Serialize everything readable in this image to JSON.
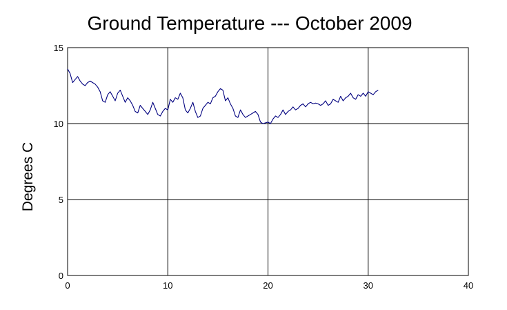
{
  "chart_data": {
    "type": "line",
    "title": "Ground Temperature --- October 2009",
    "xlabel": "",
    "ylabel": "Degrees C",
    "xlim": [
      0,
      40
    ],
    "ylim": [
      0,
      15
    ],
    "xticks": [
      0,
      10,
      20,
      30,
      40
    ],
    "yticks": [
      0,
      5,
      10,
      15
    ],
    "grid": true,
    "legend": "none",
    "series": [
      {
        "name": "",
        "color": "#00007f",
        "x": [
          0.0,
          0.25,
          0.5,
          0.75,
          1.0,
          1.25,
          1.5,
          1.75,
          2.0,
          2.25,
          2.5,
          2.75,
          3.0,
          3.25,
          3.5,
          3.75,
          4.0,
          4.25,
          4.5,
          4.75,
          5.0,
          5.25,
          5.5,
          5.75,
          6.0,
          6.25,
          6.5,
          6.75,
          7.0,
          7.25,
          7.5,
          7.75,
          8.0,
          8.25,
          8.5,
          8.75,
          9.0,
          9.25,
          9.5,
          9.75,
          10.0,
          10.25,
          10.5,
          10.75,
          11.0,
          11.25,
          11.5,
          11.75,
          12.0,
          12.25,
          12.5,
          12.75,
          13.0,
          13.25,
          13.5,
          13.75,
          14.0,
          14.25,
          14.5,
          14.75,
          15.0,
          15.25,
          15.5,
          15.75,
          16.0,
          16.25,
          16.5,
          16.75,
          17.0,
          17.25,
          17.5,
          17.75,
          18.0,
          18.25,
          18.5,
          18.75,
          19.0,
          19.25,
          19.5,
          19.75,
          20.0,
          20.25,
          20.5,
          20.75,
          21.0,
          21.25,
          21.5,
          21.75,
          22.0,
          22.25,
          22.5,
          22.75,
          23.0,
          23.25,
          23.5,
          23.75,
          24.0,
          24.25,
          24.5,
          24.75,
          25.0,
          25.25,
          25.5,
          25.75,
          26.0,
          26.25,
          26.5,
          26.75,
          27.0,
          27.25,
          27.5,
          27.75,
          28.0,
          28.25,
          28.5,
          28.75,
          29.0,
          29.25,
          29.5,
          29.75,
          30.0,
          30.25,
          30.5,
          30.75,
          31.0
        ],
        "y": [
          13.6,
          13.3,
          12.7,
          12.9,
          13.1,
          12.8,
          12.6,
          12.5,
          12.7,
          12.8,
          12.7,
          12.6,
          12.4,
          12.1,
          11.5,
          11.4,
          11.9,
          12.1,
          11.8,
          11.5,
          12.0,
          12.2,
          11.8,
          11.4,
          11.7,
          11.5,
          11.2,
          10.8,
          10.7,
          11.2,
          11.0,
          10.8,
          10.6,
          10.9,
          11.4,
          11.0,
          10.6,
          10.5,
          10.8,
          11.0,
          10.9,
          11.6,
          11.4,
          11.7,
          11.6,
          12.0,
          11.7,
          10.9,
          10.7,
          11.0,
          11.4,
          10.8,
          10.4,
          10.5,
          11.0,
          11.2,
          11.4,
          11.3,
          11.7,
          11.8,
          12.1,
          12.3,
          12.2,
          11.5,
          11.7,
          11.3,
          11.0,
          10.5,
          10.4,
          10.9,
          10.6,
          10.4,
          10.5,
          10.6,
          10.7,
          10.8,
          10.6,
          10.1,
          10.0,
          10.05,
          10.1,
          10.0,
          10.3,
          10.5,
          10.4,
          10.6,
          10.9,
          10.6,
          10.8,
          10.9,
          11.1,
          10.9,
          11.0,
          11.2,
          11.3,
          11.1,
          11.3,
          11.4,
          11.3,
          11.35,
          11.3,
          11.2,
          11.3,
          11.5,
          11.2,
          11.3,
          11.6,
          11.5,
          11.4,
          11.8,
          11.5,
          11.7,
          11.8,
          12.0,
          11.7,
          11.6,
          11.9,
          11.8,
          12.0,
          11.8,
          12.1,
          12.0,
          11.9,
          12.1,
          12.2
        ]
      }
    ]
  }
}
